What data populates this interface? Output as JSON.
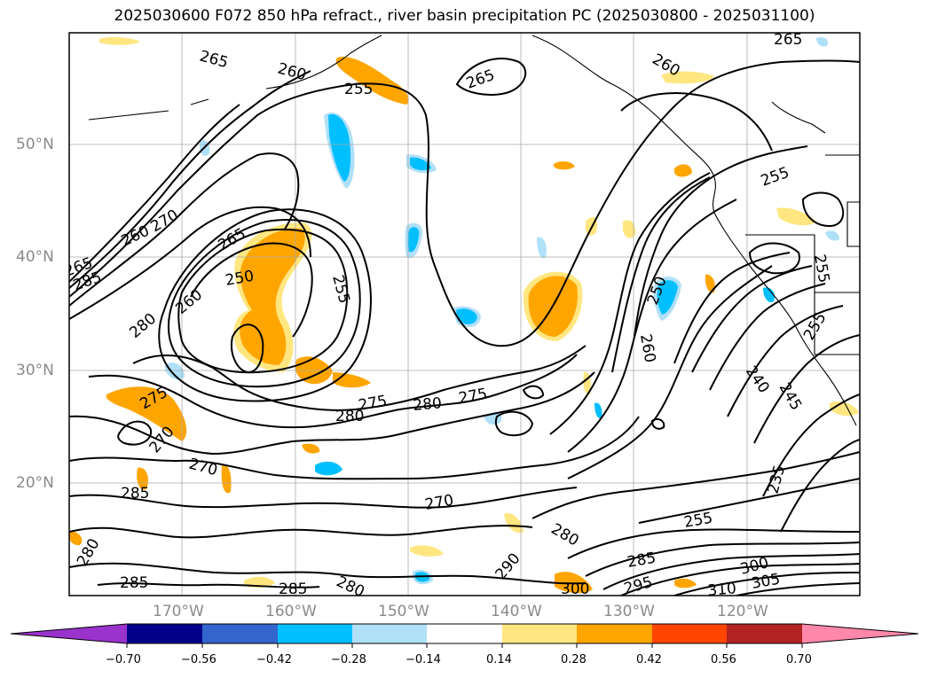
{
  "title": "2025030600 F072 850 hPa refract., river basin precipitation PC (2025030800 - 2025031100)",
  "map": {
    "lat_labels": [
      "50°N",
      "40°N",
      "30°N",
      "20°N"
    ],
    "lon_labels": [
      "170°W",
      "160°W",
      "150°W",
      "140°W",
      "130°W",
      "120°W"
    ],
    "contour_labels": [
      "265",
      "260",
      "255",
      "265",
      "260",
      "265",
      "255",
      "260",
      "270",
      "265",
      "285",
      "265",
      "250",
      "260",
      "255",
      "280",
      "275",
      "275",
      "280",
      "280",
      "275",
      "270",
      "270",
      "285",
      "280",
      "285",
      "285",
      "280",
      "270",
      "290",
      "280",
      "300",
      "295",
      "285",
      "255",
      "310",
      "305",
      "300",
      "235",
      "245",
      "240",
      "260",
      "250",
      "255",
      "255"
    ]
  },
  "colorbar": {
    "ticks": [
      "−0.70",
      "−0.56",
      "−0.42",
      "−0.28",
      "−0.14",
      "0.14",
      "0.28",
      "0.42",
      "0.56",
      "0.70"
    ],
    "colors": [
      "#9933cc",
      "#00008b",
      "#3366cc",
      "#00bfff",
      "#b0e0f8",
      "#ffffff",
      "#ffe680",
      "#ffa500",
      "#ff4500",
      "#b22222",
      "#ff88aa"
    ]
  }
}
